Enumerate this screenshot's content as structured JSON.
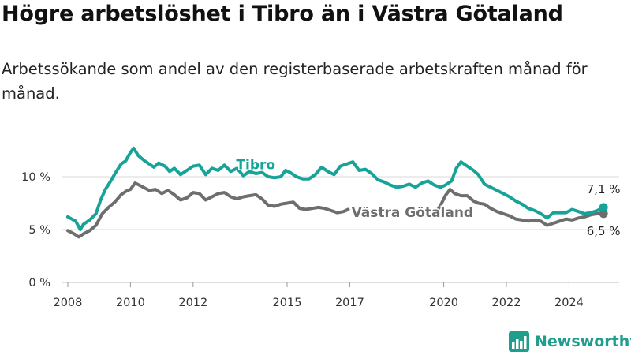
{
  "header": {
    "title": "Högre arbetslöshet i Tibro än i Västra Götaland",
    "subtitle": "Arbetssökande som andel av den registerbaserade arbetskraften månad för månad."
  },
  "brand": {
    "name": "Newsworthy",
    "icon": "newsworthy-chart-logo-icon"
  },
  "colors": {
    "tibro": "#17a398",
    "vastra_gotaland": "#6e6e6e",
    "grid": "#d9d9d9",
    "brand": "#1f9e8e"
  },
  "chart_data": {
    "type": "line",
    "title": "",
    "xlabel": "",
    "ylabel": "",
    "xlim": [
      2007.8,
      2025.6
    ],
    "ylim": [
      0,
      10
    ],
    "y_ticks": [
      0,
      5,
      10
    ],
    "y_tick_labels": [
      "0 %",
      "5 %",
      "10 %"
    ],
    "x_ticks": [
      2008,
      2010,
      2012,
      2015,
      2017,
      2020,
      2022,
      2024
    ],
    "x_tick_labels": [
      "2008",
      "2010",
      "2012",
      "2015",
      "2017",
      "2020",
      "2022",
      "2024"
    ],
    "grid": true,
    "legend": "inline labels",
    "series": [
      {
        "name": "Tibro",
        "color": "#17a398",
        "label": "Tibro",
        "end_label": "7,1 %",
        "x": [
          2008.0,
          2008.25,
          2008.4,
          2008.5,
          2008.7,
          2008.9,
          2009.05,
          2009.2,
          2009.35,
          2009.55,
          2009.7,
          2009.85,
          2010.0,
          2010.1,
          2010.25,
          2010.45,
          2010.6,
          2010.75,
          2010.9,
          2011.1,
          2011.25,
          2011.4,
          2011.6,
          2011.8,
          2012.0,
          2012.2,
          2012.4,
          2012.6,
          2012.8,
          2013.0,
          2013.2,
          2013.4,
          2013.6,
          2013.8,
          2014.0,
          2014.2,
          2014.4,
          2014.6,
          2014.8,
          2014.95,
          2015.1,
          2015.3,
          2015.5,
          2015.7,
          2015.9,
          2016.1,
          2016.3,
          2016.5,
          2016.7,
          2016.9,
          2017.1,
          2017.3,
          2017.5,
          2017.7,
          2017.9,
          2018.1,
          2018.3,
          2018.5,
          2018.7,
          2018.9,
          2019.1,
          2019.3,
          2019.5,
          2019.7,
          2019.9,
          2020.05,
          2020.25,
          2020.4,
          2020.55,
          2020.75,
          2020.95,
          2021.1,
          2021.3,
          2021.5,
          2021.7,
          2021.9,
          2022.1,
          2022.3,
          2022.5,
          2022.7,
          2022.9,
          2023.1,
          2023.3,
          2023.5,
          2023.7,
          2023.9,
          2024.1,
          2024.3,
          2024.5,
          2024.7,
          2024.9,
          2025.1
        ],
        "values": [
          6.2,
          5.8,
          5.0,
          5.5,
          5.9,
          6.5,
          7.8,
          8.8,
          9.5,
          10.5,
          11.2,
          11.5,
          12.3,
          12.7,
          12.0,
          11.5,
          11.2,
          10.9,
          11.3,
          11.0,
          10.5,
          10.8,
          10.2,
          10.6,
          11.0,
          11.1,
          10.2,
          10.8,
          10.6,
          11.1,
          10.5,
          10.8,
          10.1,
          10.5,
          10.3,
          10.4,
          10.0,
          9.9,
          10.0,
          10.6,
          10.4,
          10.0,
          9.8,
          9.8,
          10.2,
          10.9,
          10.5,
          10.2,
          11.0,
          11.2,
          11.4,
          10.6,
          10.7,
          10.3,
          9.7,
          9.5,
          9.2,
          9.0,
          9.1,
          9.3,
          9.0,
          9.4,
          9.6,
          9.2,
          9.0,
          9.2,
          9.6,
          10.8,
          11.4,
          11.0,
          10.6,
          10.2,
          9.3,
          9.0,
          8.7,
          8.4,
          8.1,
          7.7,
          7.4,
          7.0,
          6.8,
          6.5,
          6.1,
          6.6,
          6.6,
          6.6,
          6.9,
          6.7,
          6.5,
          6.6,
          6.8,
          7.1
        ]
      },
      {
        "name": "Västra Götaland",
        "color": "#6e6e6e",
        "label": "Västra Götaland",
        "end_label": "6,5 %",
        "x": [
          2008.0,
          2008.2,
          2008.35,
          2008.5,
          2008.7,
          2008.9,
          2009.1,
          2009.3,
          2009.5,
          2009.7,
          2009.9,
          2010.0,
          2010.15,
          2010.35,
          2010.6,
          2010.8,
          2011.0,
          2011.2,
          2011.4,
          2011.6,
          2011.8,
          2012.0,
          2012.2,
          2012.4,
          2012.6,
          2012.8,
          2013.0,
          2013.2,
          2013.4,
          2013.6,
          2013.8,
          2014.0,
          2014.2,
          2014.4,
          2014.6,
          2014.8,
          2015.0,
          2015.2,
          2015.4,
          2015.6,
          2015.8,
          2016.0,
          2016.2,
          2016.4,
          2016.6,
          2016.8,
          2016.95,
          2019.75,
          2019.9,
          2020.05,
          2020.2,
          2020.35,
          2020.55,
          2020.75,
          2020.95,
          2021.1,
          2021.3,
          2021.5,
          2021.7,
          2021.9,
          2022.1,
          2022.3,
          2022.5,
          2022.7,
          2022.9,
          2023.1,
          2023.3,
          2023.5,
          2023.7,
          2023.9,
          2024.1,
          2024.3,
          2024.5,
          2024.7,
          2024.9,
          2025.1
        ],
        "values": [
          4.9,
          4.6,
          4.3,
          4.6,
          4.9,
          5.4,
          6.5,
          7.1,
          7.6,
          8.3,
          8.7,
          8.8,
          9.4,
          9.1,
          8.7,
          8.8,
          8.4,
          8.7,
          8.3,
          7.8,
          8.0,
          8.5,
          8.4,
          7.8,
          8.1,
          8.4,
          8.5,
          8.1,
          7.9,
          8.1,
          8.2,
          8.3,
          7.9,
          7.3,
          7.2,
          7.4,
          7.5,
          7.6,
          7.0,
          6.9,
          7.0,
          7.1,
          7.0,
          6.8,
          6.6,
          6.7,
          6.9,
          6.6,
          7.3,
          8.2,
          8.8,
          8.4,
          8.2,
          8.2,
          7.7,
          7.5,
          7.4,
          7.0,
          6.7,
          6.5,
          6.3,
          6.0,
          5.9,
          5.8,
          5.9,
          5.8,
          5.4,
          5.6,
          5.8,
          6.0,
          5.9,
          6.1,
          6.2,
          6.4,
          6.5,
          6.5
        ]
      }
    ]
  }
}
